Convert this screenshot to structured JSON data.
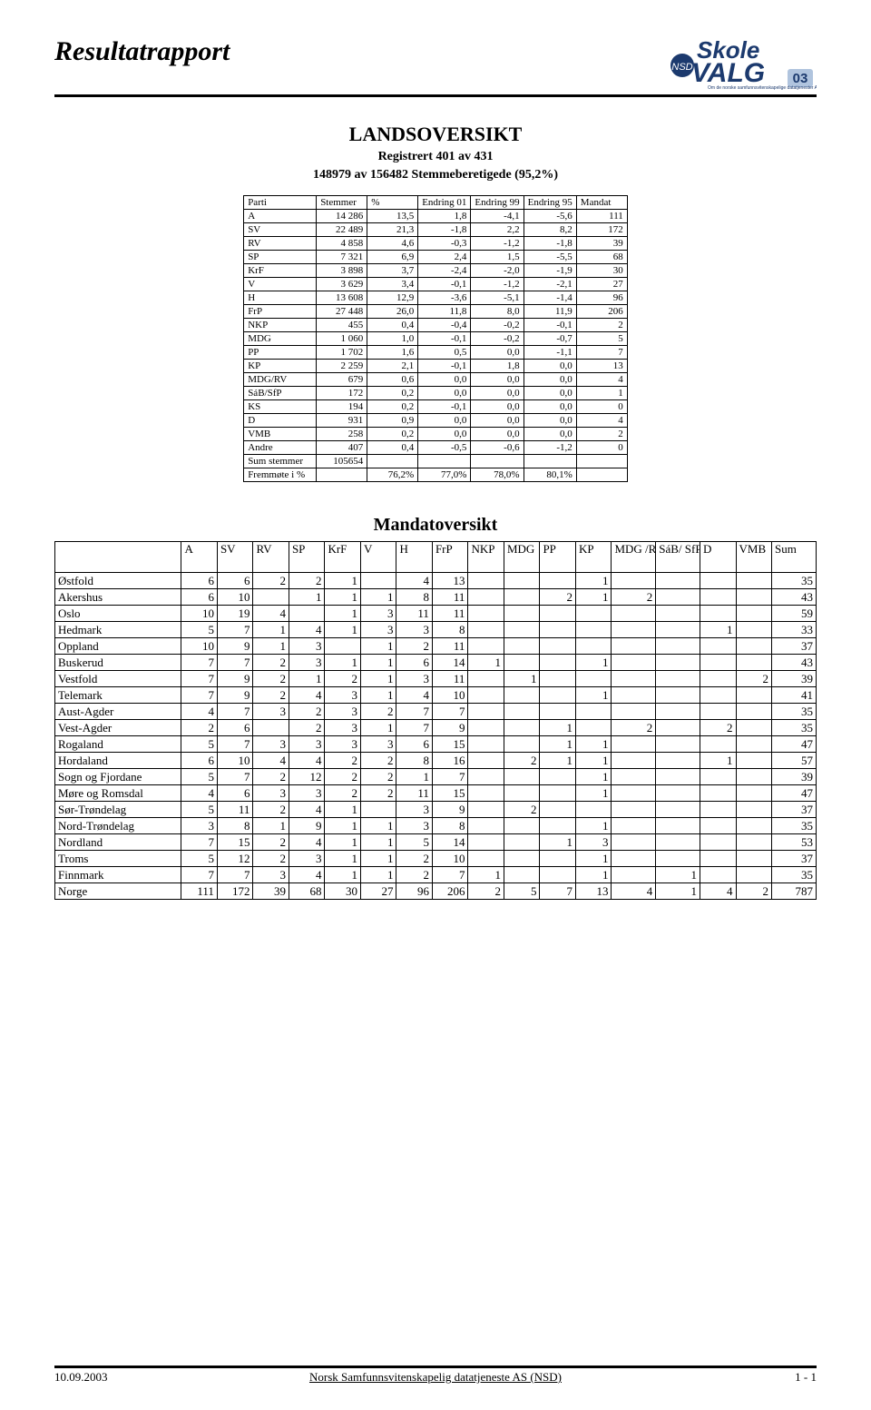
{
  "header": {
    "title": "Resultatrapport",
    "logo_text_top": "Skole",
    "logo_text_bottom": "VALG",
    "logo_year": "03",
    "logo_color_top": "#1c3a6e",
    "logo_color_bottom": "#1c3a6e",
    "logo_accent": "#b0c4de"
  },
  "overview": {
    "title": "LANDSOVERSIKT",
    "line1": "Registrert 401 av 431",
    "line2": "148979 av 156482 Stemmeberetigede (95,2%)"
  },
  "table1": {
    "columns": [
      "Parti",
      "Stemmer",
      "%",
      "Endring 01",
      "Endring 99",
      "Endring 95",
      "Mandat"
    ],
    "rows": [
      [
        "A",
        "14 286",
        "13,5",
        "1,8",
        "-4,1",
        "-5,6",
        "111"
      ],
      [
        "SV",
        "22 489",
        "21,3",
        "-1,8",
        "2,2",
        "8,2",
        "172"
      ],
      [
        "RV",
        "4 858",
        "4,6",
        "-0,3",
        "-1,2",
        "-1,8",
        "39"
      ],
      [
        "SP",
        "7 321",
        "6,9",
        "2,4",
        "1,5",
        "-5,5",
        "68"
      ],
      [
        "KrF",
        "3 898",
        "3,7",
        "-2,4",
        "-2,0",
        "-1,9",
        "30"
      ],
      [
        "V",
        "3 629",
        "3,4",
        "-0,1",
        "-1,2",
        "-2,1",
        "27"
      ],
      [
        "H",
        "13 608",
        "12,9",
        "-3,6",
        "-5,1",
        "-1,4",
        "96"
      ],
      [
        "FrP",
        "27 448",
        "26,0",
        "11,8",
        "8,0",
        "11,9",
        "206"
      ],
      [
        "NKP",
        "455",
        "0,4",
        "-0,4",
        "-0,2",
        "-0,1",
        "2"
      ],
      [
        "MDG",
        "1 060",
        "1,0",
        "-0,1",
        "-0,2",
        "-0,7",
        "5"
      ],
      [
        "PP",
        "1 702",
        "1,6",
        "0,5",
        "0,0",
        "-1,1",
        "7"
      ],
      [
        "KP",
        "2 259",
        "2,1",
        "-0,1",
        "1,8",
        "0,0",
        "13"
      ],
      [
        "MDG/RV",
        "679",
        "0,6",
        "0,0",
        "0,0",
        "0,0",
        "4"
      ],
      [
        "SáB/SfP",
        "172",
        "0,2",
        "0,0",
        "0,0",
        "0,0",
        "1"
      ],
      [
        "KS",
        "194",
        "0,2",
        "-0,1",
        "0,0",
        "0,0",
        "0"
      ],
      [
        "D",
        "931",
        "0,9",
        "0,0",
        "0,0",
        "0,0",
        "4"
      ],
      [
        "VMB",
        "258",
        "0,2",
        "0,0",
        "0,0",
        "0,0",
        "2"
      ],
      [
        "Andre",
        "407",
        "0,4",
        "-0,5",
        "-0,6",
        "-1,2",
        "0"
      ]
    ],
    "sum_label": "Sum stemmer",
    "sum_value": "105654",
    "turnout_label": "Fremmøte i %",
    "turnout_values": [
      "76,2%",
      "77,0%",
      "78,0%",
      "80,1%"
    ]
  },
  "table2": {
    "title": "Mandatoversikt",
    "columns": [
      "",
      "A",
      "SV",
      "RV",
      "SP",
      "KrF",
      "V",
      "H",
      "FrP",
      "NKP",
      "MDG",
      "PP",
      "KP",
      "MDG /RV",
      "SáB/ SfP",
      "D",
      "VMB",
      "Sum"
    ],
    "rows": [
      [
        "Østfold",
        "6",
        "6",
        "2",
        "2",
        "1",
        "",
        "4",
        "13",
        "",
        "",
        "",
        "1",
        "",
        "",
        "",
        "",
        "35"
      ],
      [
        "Akershus",
        "6",
        "10",
        "",
        "1",
        "1",
        "1",
        "8",
        "11",
        "",
        "",
        "2",
        "1",
        "2",
        "",
        "",
        "",
        "43"
      ],
      [
        "Oslo",
        "10",
        "19",
        "4",
        "",
        "1",
        "3",
        "11",
        "11",
        "",
        "",
        "",
        "",
        "",
        "",
        "",
        "",
        "59"
      ],
      [
        "Hedmark",
        "5",
        "7",
        "1",
        "4",
        "1",
        "3",
        "3",
        "8",
        "",
        "",
        "",
        "",
        "",
        "",
        "1",
        "",
        "33"
      ],
      [
        "Oppland",
        "10",
        "9",
        "1",
        "3",
        "",
        "1",
        "2",
        "11",
        "",
        "",
        "",
        "",
        "",
        "",
        "",
        "",
        "37"
      ],
      [
        "Buskerud",
        "7",
        "7",
        "2",
        "3",
        "1",
        "1",
        "6",
        "14",
        "1",
        "",
        "",
        "1",
        "",
        "",
        "",
        "",
        "43"
      ],
      [
        "Vestfold",
        "7",
        "9",
        "2",
        "1",
        "2",
        "1",
        "3",
        "11",
        "",
        "1",
        "",
        "",
        "",
        "",
        "",
        "2",
        "39"
      ],
      [
        "Telemark",
        "7",
        "9",
        "2",
        "4",
        "3",
        "1",
        "4",
        "10",
        "",
        "",
        "",
        "1",
        "",
        "",
        "",
        "",
        "41"
      ],
      [
        "Aust-Agder",
        "4",
        "7",
        "3",
        "2",
        "3",
        "2",
        "7",
        "7",
        "",
        "",
        "",
        "",
        "",
        "",
        "",
        "",
        "35"
      ],
      [
        "Vest-Agder",
        "2",
        "6",
        "",
        "2",
        "3",
        "1",
        "7",
        "9",
        "",
        "",
        "1",
        "",
        "2",
        "",
        "2",
        "",
        "35"
      ],
      [
        "Rogaland",
        "5",
        "7",
        "3",
        "3",
        "3",
        "3",
        "6",
        "15",
        "",
        "",
        "1",
        "1",
        "",
        "",
        "",
        "",
        "47"
      ],
      [
        "Hordaland",
        "6",
        "10",
        "4",
        "4",
        "2",
        "2",
        "8",
        "16",
        "",
        "2",
        "1",
        "1",
        "",
        "",
        "1",
        "",
        "57"
      ],
      [
        "Sogn og Fjordane",
        "5",
        "7",
        "2",
        "12",
        "2",
        "2",
        "1",
        "7",
        "",
        "",
        "",
        "1",
        "",
        "",
        "",
        "",
        "39"
      ],
      [
        "Møre og Romsdal",
        "4",
        "6",
        "3",
        "3",
        "2",
        "2",
        "11",
        "15",
        "",
        "",
        "",
        "1",
        "",
        "",
        "",
        "",
        "47"
      ],
      [
        "Sør-Trøndelag",
        "5",
        "11",
        "2",
        "4",
        "1",
        "",
        "3",
        "9",
        "",
        "2",
        "",
        "",
        "",
        "",
        "",
        "",
        "37"
      ],
      [
        "Nord-Trøndelag",
        "3",
        "8",
        "1",
        "9",
        "1",
        "1",
        "3",
        "8",
        "",
        "",
        "",
        "1",
        "",
        "",
        "",
        "",
        "35"
      ],
      [
        "Nordland",
        "7",
        "15",
        "2",
        "4",
        "1",
        "1",
        "5",
        "14",
        "",
        "",
        "1",
        "3",
        "",
        "",
        "",
        "",
        "53"
      ],
      [
        "Troms",
        "5",
        "12",
        "2",
        "3",
        "1",
        "1",
        "2",
        "10",
        "",
        "",
        "",
        "1",
        "",
        "",
        "",
        "",
        "37"
      ],
      [
        "Finnmark",
        "7",
        "7",
        "3",
        "4",
        "1",
        "1",
        "2",
        "7",
        "1",
        "",
        "",
        "1",
        "",
        "1",
        "",
        "",
        "35"
      ],
      [
        "Norge",
        "111",
        "172",
        "39",
        "68",
        "30",
        "27",
        "96",
        "206",
        "2",
        "5",
        "7",
        "13",
        "4",
        "1",
        "4",
        "2",
        "787"
      ]
    ]
  },
  "footer": {
    "date": "10.09.2003",
    "org": "Norsk Samfunnsvitenskapelig datatjeneste AS (NSD)",
    "page": "1 - 1"
  }
}
